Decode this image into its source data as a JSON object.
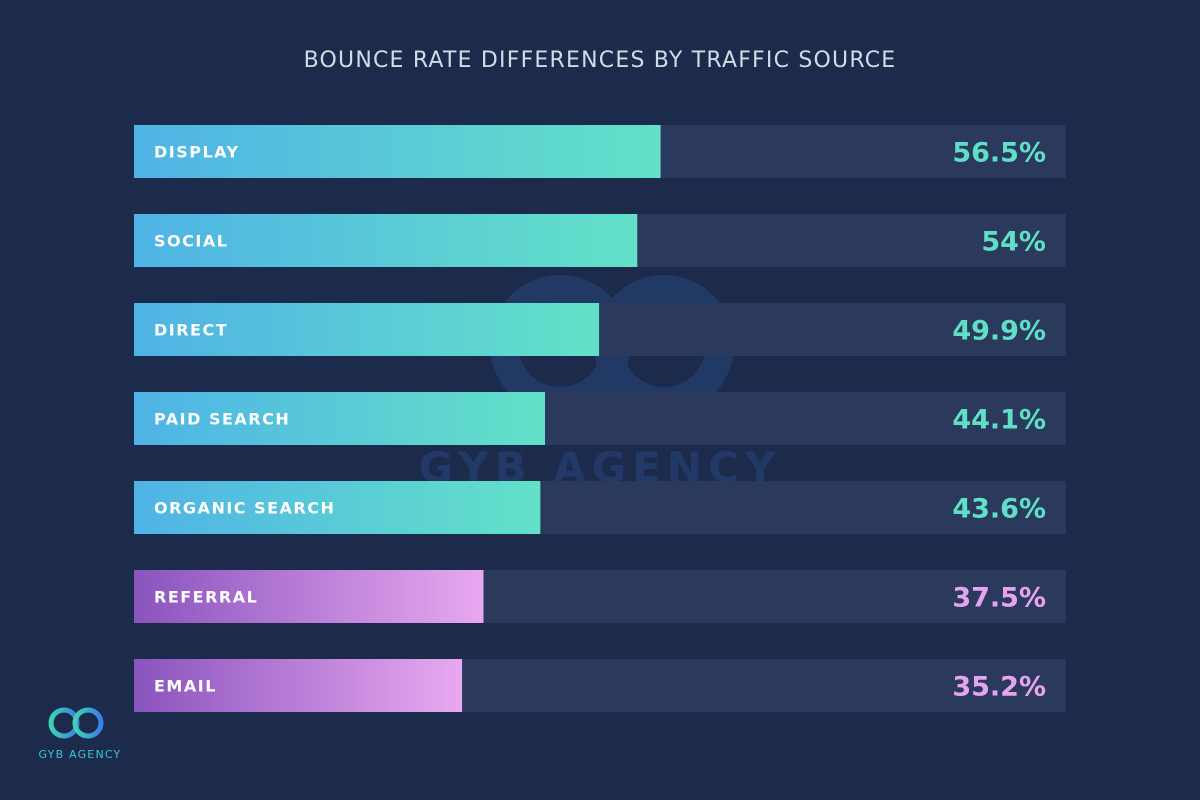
{
  "colors": {
    "background": "#1c2a4b",
    "track": "#2b3a5c",
    "teal_start": "#4fb3e6",
    "teal_end": "#63e1c8",
    "teal_text": "#5fe0c6",
    "purple_start": "#8a54be",
    "purple_end": "#e8a8f0",
    "purple_text": "#e6a4f0"
  },
  "brand": {
    "name": "GYB AGENCY",
    "watermark_text": "GYB AGENCY"
  },
  "chart_data": {
    "type": "bar",
    "orientation": "horizontal",
    "title": "BOUNCE RATE DIFFERENCES BY TRAFFIC SOURCE",
    "xlim": [
      0,
      100
    ],
    "categories": [
      "DISPLAY",
      "SOCIAL",
      "DIRECT",
      "PAID SEARCH",
      "ORGANIC SEARCH",
      "REFERRAL",
      "EMAIL"
    ],
    "values": [
      56.5,
      54,
      49.9,
      44.1,
      43.6,
      37.5,
      35.2
    ],
    "value_labels": [
      "56.5%",
      "54%",
      "49.9%",
      "44.1%",
      "43.6%",
      "37.5%",
      "35.2%"
    ],
    "bar_colors": [
      "teal",
      "teal",
      "teal",
      "teal",
      "teal",
      "purple",
      "purple"
    ],
    "grid": false,
    "legend": "none"
  }
}
